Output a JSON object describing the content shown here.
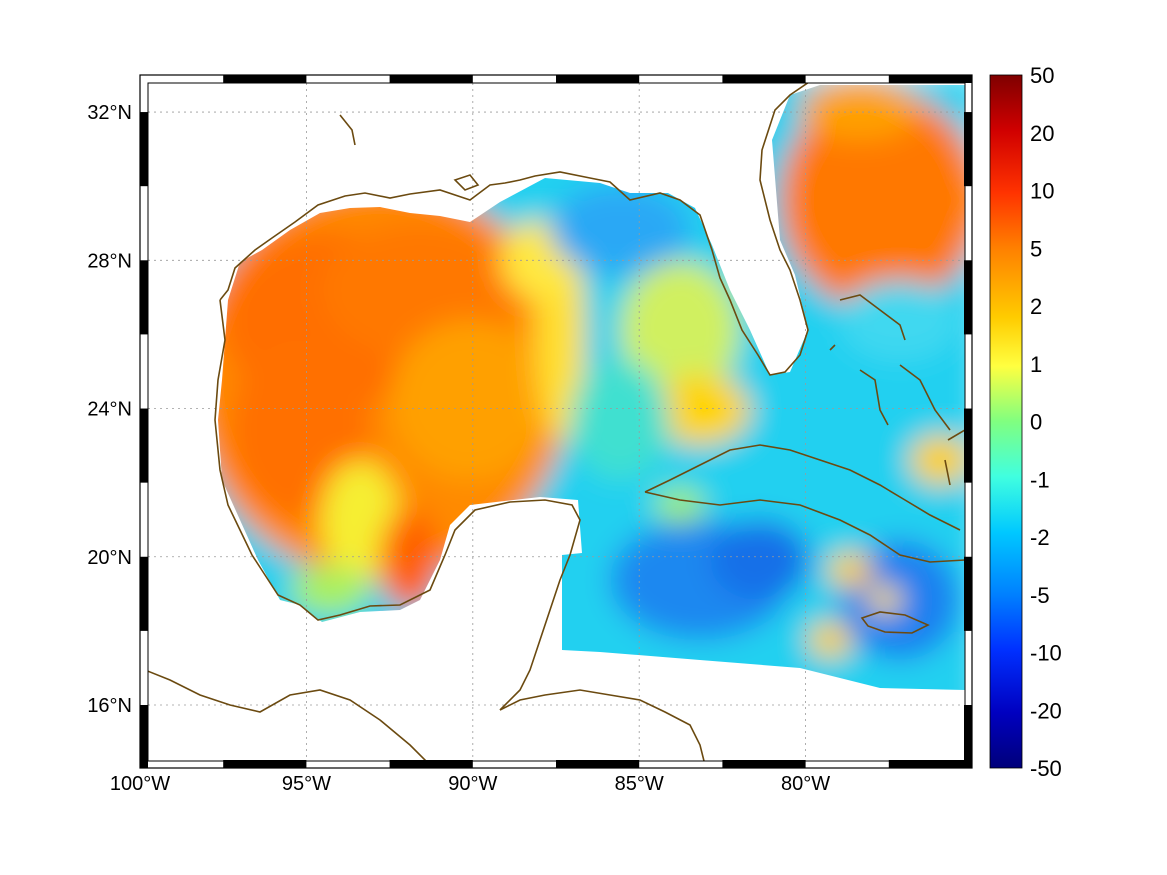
{
  "map": {
    "lon_range": [
      -100,
      -75
    ],
    "lat_range": [
      14.3,
      33
    ],
    "x_ticks": [
      {
        "lon": -100,
        "label": "100°W"
      },
      {
        "lon": -95,
        "label": "95°W"
      },
      {
        "lon": -90,
        "label": "90°W"
      },
      {
        "lon": -85,
        "label": "85°W"
      },
      {
        "lon": -80,
        "label": "80°W"
      }
    ],
    "y_ticks": [
      {
        "lat": 32,
        "label": "32°N"
      },
      {
        "lat": 28,
        "label": "28°N"
      },
      {
        "lat": 24,
        "label": "24°N"
      },
      {
        "lat": 20,
        "label": "20°N"
      },
      {
        "lat": 16,
        "label": "16°N"
      }
    ],
    "grid": true,
    "coastline_color": "#6b4a10"
  },
  "colorbar": {
    "labels": [
      "50",
      "20",
      "10",
      "5",
      "2",
      "1",
      "0",
      "-1",
      "-2",
      "-5",
      "-10",
      "-20",
      "-50"
    ],
    "colors": [
      "#7f0000",
      "#d10000",
      "#ff3c00",
      "#ff8c00",
      "#ffd200",
      "#ffff3c",
      "#7fff7f",
      "#3cffd8",
      "#00d8ff",
      "#0090ff",
      "#0040ff",
      "#0000c0",
      "#000080"
    ]
  },
  "field_colors": {
    "high": "#ff7a00",
    "mid": "#ffb000",
    "yellow": "#f4f42a",
    "cyan": "#22d8f0",
    "blue": "#1a9bf5",
    "deep_blue": "#1466e8",
    "land": "#ffffff"
  }
}
